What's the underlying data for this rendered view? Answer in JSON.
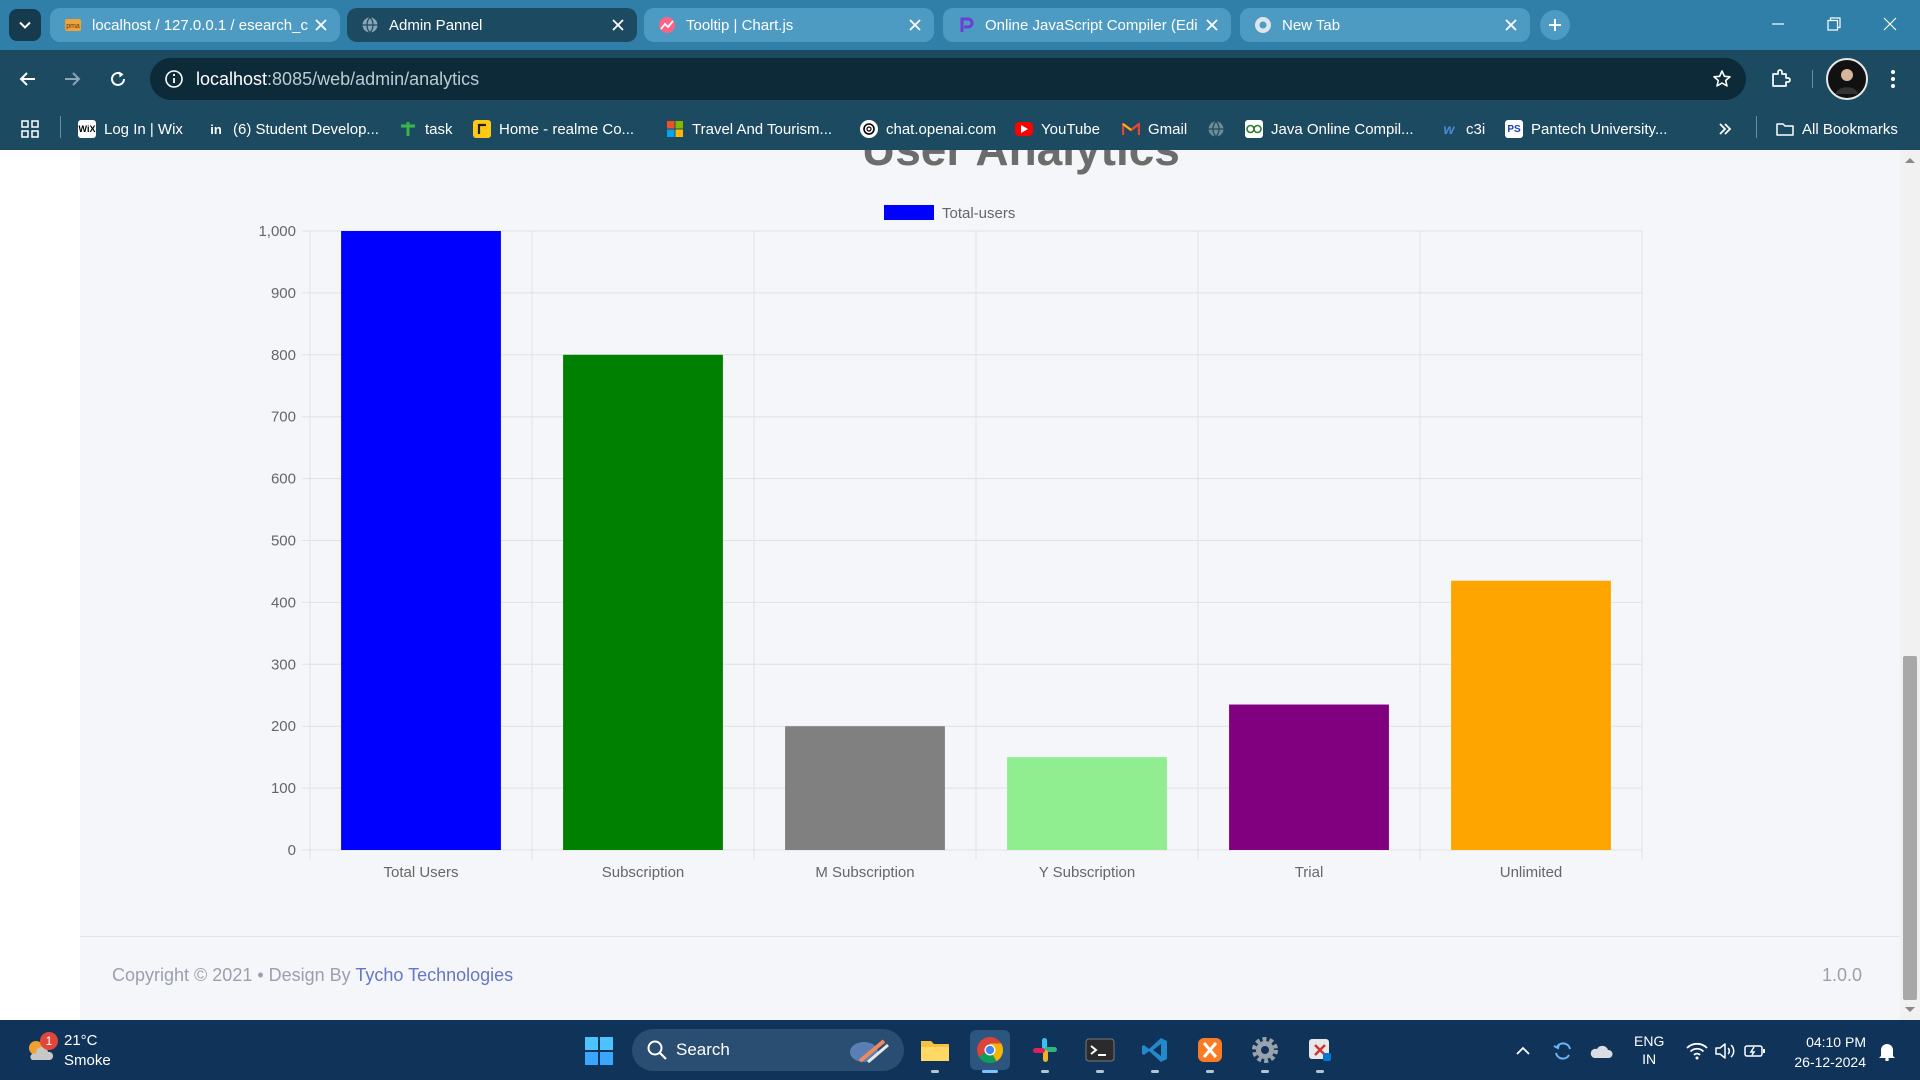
{
  "browser": {
    "tabs": [
      {
        "title": "localhost / 127.0.0.1 / esearch_c",
        "active": false
      },
      {
        "title": "Admin Pannel",
        "active": true
      },
      {
        "title": "Tooltip | Chart.js",
        "active": false
      },
      {
        "title": "Online JavaScript Compiler (Edi",
        "active": false
      },
      {
        "title": "New Tab",
        "active": false
      }
    ],
    "url_host": "localhost",
    "url_rest": ":8085/web/admin/analytics",
    "bookmarks": [
      {
        "label": "Log In | Wix"
      },
      {
        "label": "(6) Student Develop..."
      },
      {
        "label": "task"
      },
      {
        "label": "Home - realme Co..."
      },
      {
        "label": "Travel And Tourism..."
      },
      {
        "label": "chat.openai.com"
      },
      {
        "label": "YouTube"
      },
      {
        "label": "Gmail"
      },
      {
        "label": ""
      },
      {
        "label": "Java Online Compil..."
      },
      {
        "label": "c3i"
      },
      {
        "label": "Pantech University..."
      }
    ],
    "all_bookmarks": "All Bookmarks",
    "favicon_text": {
      "phpmyadmin": "pma",
      "wix": "WiX",
      "linkedin": "in",
      "pantech": "PS",
      "c3i": "w"
    }
  },
  "page": {
    "title": "User Analytics",
    "footer": {
      "copyright": "Copyright © 2021 •  Design By ",
      "company": "Tycho Technologies",
      "version": "1.0.0"
    }
  },
  "chart_data": {
    "type": "bar",
    "title": "User Analytics",
    "legend": "Total-users",
    "legend_position": "top",
    "categories": [
      "Total Users",
      "Subscription",
      "M Subscription",
      "Y Subscription",
      "Trial",
      "Unlimited"
    ],
    "values": [
      1000,
      800,
      200,
      150,
      235,
      435
    ],
    "colors": [
      "#0000ff",
      "#008000",
      "#808080",
      "#90ee90",
      "#800080",
      "#ffa500"
    ],
    "ylim": [
      0,
      1000
    ],
    "yticks": [
      0,
      100,
      200,
      300,
      400,
      500,
      600,
      700,
      800,
      900,
      1000
    ],
    "ytick_labels": [
      "0",
      "100",
      "200",
      "300",
      "400",
      "500",
      "600",
      "700",
      "800",
      "900",
      "1,000"
    ],
    "grid": true
  },
  "taskbar": {
    "weather": {
      "temp": "21°C",
      "condition": "Smoke",
      "badge": "1"
    },
    "search": "Search",
    "lang1": "ENG",
    "lang2": "IN",
    "time": "04:10 PM",
    "date": "26-12-2024"
  }
}
